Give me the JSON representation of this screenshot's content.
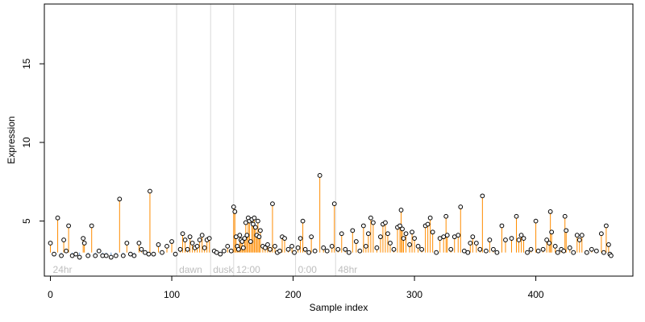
{
  "chart_data": {
    "type": "scatter",
    "xlabel": "Sample index",
    "ylabel": "Expression",
    "xlim": [
      -5,
      480
    ],
    "ylim": [
      1.5,
      18.8
    ],
    "x_ticks": [
      0,
      100,
      200,
      300,
      400
    ],
    "y_ticks": [
      5,
      10,
      15
    ],
    "baseline": 3.0,
    "group_boundaries": [
      104,
      132,
      151,
      202,
      235
    ],
    "group_labels": [
      {
        "text": "24hr",
        "x": 2
      },
      {
        "text": "dawn",
        "x": 106
      },
      {
        "text": "dusk",
        "x": 134
      },
      {
        "text": "12:00",
        "x": 153
      },
      {
        "text": "0:00",
        "x": 204
      },
      {
        "text": "48hr",
        "x": 237
      }
    ],
    "series": [
      {
        "marker": "open-circle",
        "stem_color_up": "#ff8c00",
        "stem_color_down": "#6ca0dc",
        "points": [
          [
            0,
            3.6
          ],
          [
            3,
            2.9
          ],
          [
            6,
            5.2
          ],
          [
            9,
            2.8
          ],
          [
            11,
            3.8
          ],
          [
            13,
            3.1
          ],
          [
            15,
            4.7
          ],
          [
            18,
            2.8
          ],
          [
            21,
            2.9
          ],
          [
            24,
            2.7
          ],
          [
            27,
            3.9
          ],
          [
            28,
            3.6
          ],
          [
            31,
            2.8
          ],
          [
            34,
            4.7
          ],
          [
            37,
            2.8
          ],
          [
            40,
            3.1
          ],
          [
            43,
            2.8
          ],
          [
            46,
            2.8
          ],
          [
            50,
            2.7
          ],
          [
            54,
            2.8
          ],
          [
            57,
            6.4
          ],
          [
            60,
            2.8
          ],
          [
            63,
            3.6
          ],
          [
            66,
            2.9
          ],
          [
            69,
            2.8
          ],
          [
            73,
            3.6
          ],
          [
            75,
            3.2
          ],
          [
            78,
            3.0
          ],
          [
            81,
            2.9
          ],
          [
            82,
            6.9
          ],
          [
            85,
            2.9
          ],
          [
            89,
            3.5
          ],
          [
            92,
            3.0
          ],
          [
            96,
            3.4
          ],
          [
            100,
            3.7
          ],
          [
            103,
            2.9
          ],
          [
            107,
            3.2
          ],
          [
            109,
            4.2
          ],
          [
            111,
            3.8
          ],
          [
            113,
            3.2
          ],
          [
            115,
            4.0
          ],
          [
            117,
            3.6
          ],
          [
            119,
            3.3
          ],
          [
            121,
            3.4
          ],
          [
            123,
            3.8
          ],
          [
            125,
            4.1
          ],
          [
            127,
            3.3
          ],
          [
            129,
            3.8
          ],
          [
            131,
            3.9
          ],
          [
            135,
            3.1
          ],
          [
            137,
            3.0
          ],
          [
            140,
            2.9
          ],
          [
            143,
            3.1
          ],
          [
            146,
            3.4
          ],
          [
            149,
            3.1
          ],
          [
            151,
            5.9
          ],
          [
            152,
            5.6
          ],
          [
            153,
            4.0
          ],
          [
            154,
            3.4
          ],
          [
            155,
            3.2
          ],
          [
            156,
            4.1
          ],
          [
            157,
            3.8
          ],
          [
            158,
            3.7
          ],
          [
            159,
            3.3
          ],
          [
            160,
            3.9
          ],
          [
            161,
            4.9
          ],
          [
            162,
            4.1
          ],
          [
            163,
            5.2
          ],
          [
            164,
            5.0
          ],
          [
            165,
            3.7
          ],
          [
            166,
            5.1
          ],
          [
            167,
            4.8
          ],
          [
            168,
            5.2
          ],
          [
            169,
            4.6
          ],
          [
            170,
            4.1
          ],
          [
            171,
            5.0
          ],
          [
            172,
            4.0
          ],
          [
            173,
            4.4
          ],
          [
            175,
            3.4
          ],
          [
            177,
            3.3
          ],
          [
            179,
            3.5
          ],
          [
            181,
            3.2
          ],
          [
            183,
            6.1
          ],
          [
            185,
            3.4
          ],
          [
            187,
            3.0
          ],
          [
            189,
            3.1
          ],
          [
            191,
            4.0
          ],
          [
            193,
            3.9
          ],
          [
            196,
            3.2
          ],
          [
            199,
            3.4
          ],
          [
            201,
            3.0
          ],
          [
            204,
            3.3
          ],
          [
            206,
            3.9
          ],
          [
            208,
            5.0
          ],
          [
            210,
            3.2
          ],
          [
            213,
            3.0
          ],
          [
            215,
            4.0
          ],
          [
            218,
            3.1
          ],
          [
            222,
            7.9
          ],
          [
            225,
            3.3
          ],
          [
            228,
            3.1
          ],
          [
            232,
            3.4
          ],
          [
            234,
            6.1
          ],
          [
            237,
            3.2
          ],
          [
            240,
            4.2
          ],
          [
            243,
            3.2
          ],
          [
            246,
            3.0
          ],
          [
            249,
            4.4
          ],
          [
            252,
            3.7
          ],
          [
            255,
            3.1
          ],
          [
            258,
            4.7
          ],
          [
            260,
            3.4
          ],
          [
            262,
            4.2
          ],
          [
            264,
            5.2
          ],
          [
            266,
            4.9
          ],
          [
            269,
            3.3
          ],
          [
            272,
            4.0
          ],
          [
            274,
            4.8
          ],
          [
            276,
            4.9
          ],
          [
            278,
            4.2
          ],
          [
            280,
            3.6
          ],
          [
            283,
            3.2
          ],
          [
            286,
            4.6
          ],
          [
            288,
            4.7
          ],
          [
            289,
            5.7
          ],
          [
            290,
            4.5
          ],
          [
            291,
            3.9
          ],
          [
            293,
            4.2
          ],
          [
            296,
            3.5
          ],
          [
            298,
            4.3
          ],
          [
            300,
            3.9
          ],
          [
            303,
            3.4
          ],
          [
            306,
            3.2
          ],
          [
            309,
            4.7
          ],
          [
            311,
            4.8
          ],
          [
            313,
            5.2
          ],
          [
            315,
            4.3
          ],
          [
            318,
            3.0
          ],
          [
            321,
            3.9
          ],
          [
            324,
            4.0
          ],
          [
            326,
            5.3
          ],
          [
            327,
            4.1
          ],
          [
            330,
            3.2
          ],
          [
            333,
            4.0
          ],
          [
            336,
            4.1
          ],
          [
            338,
            5.9
          ],
          [
            341,
            3.1
          ],
          [
            344,
            3.0
          ],
          [
            346,
            3.6
          ],
          [
            348,
            4.0
          ],
          [
            351,
            3.6
          ],
          [
            354,
            3.2
          ],
          [
            356,
            6.6
          ],
          [
            359,
            3.1
          ],
          [
            362,
            3.8
          ],
          [
            365,
            3.2
          ],
          [
            368,
            3.0
          ],
          [
            372,
            4.7
          ],
          [
            375,
            3.8
          ],
          [
            380,
            3.9
          ],
          [
            384,
            5.3
          ],
          [
            386,
            3.8
          ],
          [
            388,
            4.1
          ],
          [
            390,
            3.9
          ],
          [
            393,
            3.0
          ],
          [
            396,
            3.2
          ],
          [
            400,
            5.0
          ],
          [
            402,
            3.1
          ],
          [
            406,
            3.2
          ],
          [
            409,
            3.8
          ],
          [
            411,
            3.6
          ],
          [
            412,
            5.6
          ],
          [
            413,
            4.3
          ],
          [
            416,
            3.4
          ],
          [
            418,
            3.0
          ],
          [
            421,
            3.2
          ],
          [
            423,
            3.1
          ],
          [
            424,
            5.3
          ],
          [
            425,
            4.4
          ],
          [
            428,
            3.3
          ],
          [
            431,
            3.0
          ],
          [
            434,
            4.1
          ],
          [
            436,
            3.8
          ],
          [
            438,
            4.1
          ],
          [
            442,
            3.0
          ],
          [
            446,
            3.2
          ],
          [
            450,
            3.1
          ],
          [
            454,
            4.2
          ],
          [
            456,
            3.0
          ],
          [
            458,
            4.7
          ],
          [
            460,
            3.5
          ],
          [
            461,
            2.9
          ],
          [
            462,
            2.8
          ]
        ]
      }
    ]
  }
}
